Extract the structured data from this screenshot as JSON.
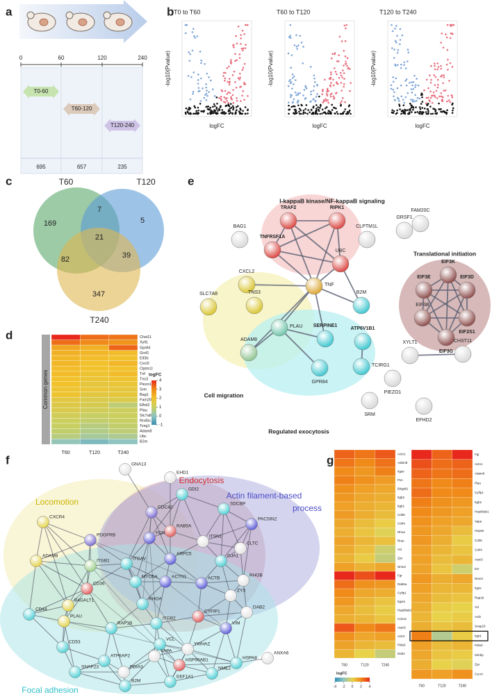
{
  "panel_labels": [
    "a",
    "b",
    "c",
    "d",
    "e",
    "f",
    "g"
  ],
  "a": {
    "ticks": [
      0,
      60,
      120,
      240
    ],
    "intervals": [
      {
        "label": "T0-60",
        "count": 695,
        "color": "#c6e3b0"
      },
      {
        "label": "T60-120",
        "count": 657,
        "color": "#dccabb"
      },
      {
        "label": "T120-240",
        "count": 235,
        "color": "#cfc3e6"
      }
    ]
  },
  "b": {
    "plots": [
      {
        "title": "T0 to T60",
        "x_label": "logFC",
        "y_label": "-log10(Pvalue)"
      },
      {
        "title": "T60 to T120",
        "x_label": "logFC",
        "y_label": "-log10(Pvalue)"
      },
      {
        "title": "T120 to T240",
        "x_label": "logFC",
        "y_label": "-log10(Pvalue)"
      }
    ],
    "colors": {
      "down": "#7fa6d6",
      "up": "#e8707f",
      "ns": "#111111"
    }
  },
  "c": {
    "sets": [
      {
        "label": "T60",
        "color": "#5aa86a"
      },
      {
        "label": "T120",
        "color": "#5b9bd5"
      },
      {
        "label": "T240",
        "color": "#e0b550"
      }
    ],
    "regions": [
      169,
      5,
      347,
      7,
      82,
      39,
      21
    ]
  },
  "d": {
    "side_label": "Common genes",
    "columns": [
      "T60",
      "T120",
      "T240"
    ],
    "genes": [
      "Chst11",
      "Xylt1",
      "Gpr84",
      "Grsf1",
      "Eif3b",
      "Cxcl2",
      "Clptm1l",
      "Tnf",
      "Tns3",
      "Piezo1",
      "Srm",
      "Bag1",
      "Fam20c",
      "Efhd2",
      "Plau",
      "Slc7a8",
      "Rn45s",
      "Tcirg1",
      "Adam8",
      "Ubc",
      "B2m"
    ],
    "values": [
      [
        4,
        3.3,
        3.2
      ],
      [
        3.3,
        3.0,
        2.8
      ],
      [
        2.5,
        2.3,
        3.4
      ],
      [
        2.3,
        2.2,
        2.1
      ],
      [
        2.2,
        2.1,
        2.0
      ],
      [
        2.2,
        2.0,
        2.2
      ],
      [
        2.1,
        2.0,
        2.0
      ],
      [
        2.1,
        1.9,
        2.1
      ],
      [
        2.0,
        1.8,
        1.9
      ],
      [
        2.0,
        1.7,
        1.8
      ],
      [
        1.9,
        1.8,
        1.7
      ],
      [
        1.9,
        1.6,
        1.7
      ],
      [
        1.6,
        1.4,
        1.4
      ],
      [
        1.5,
        1.3,
        0.8
      ],
      [
        1.4,
        1.2,
        1.1
      ],
      [
        1.2,
        1.0,
        1.1
      ],
      [
        1.1,
        0.9,
        1.0
      ],
      [
        1.0,
        0.7,
        0.9
      ],
      [
        0.9,
        0.6,
        0.8
      ],
      [
        0.7,
        0.4,
        0.5
      ],
      [
        0.1,
        -0.2,
        0.0
      ]
    ],
    "legend": {
      "title": "logFC",
      "ticks": [
        4,
        3,
        2,
        1,
        0,
        -1
      ],
      "colors": [
        "#e8281c",
        "#f08a18",
        "#f2c22c",
        "#c8cf62",
        "#8fc4c0",
        "#3a8fb0"
      ]
    }
  },
  "e": {
    "clusters": [
      {
        "label": "I-kappaB kinase/NF-kappaB signaling",
        "fill": "#f5c8c8"
      },
      {
        "label": "Translational initiation",
        "fill": "#c9a2a2"
      },
      {
        "label": "Cell migration",
        "fill": "#f5f2b8"
      },
      {
        "label": "Regulated exocytosis",
        "fill": "#b8eff2"
      }
    ],
    "nodes": [
      {
        "label": "BAG1",
        "color": "#d8d8d8"
      },
      {
        "label": "TRAF2",
        "color": "#d9433f"
      },
      {
        "label": "RIPK1",
        "color": "#d9433f"
      },
      {
        "label": "FAM20C",
        "color": "#d8d8d8"
      },
      {
        "label": "GRSF1",
        "color": "#d8d8d8"
      },
      {
        "label": "TNFRSF1A",
        "color": "#d9433f"
      },
      {
        "label": "CLPTM1L",
        "color": "#d8d8d8"
      },
      {
        "label": "UBC",
        "color": "#d9433f"
      },
      {
        "label": "EIF3K",
        "color": "#8b4a48"
      },
      {
        "label": "EIF3E",
        "color": "#8b4a48"
      },
      {
        "label": "EIF3D",
        "color": "#8b4a48"
      },
      {
        "label": "EIF3B",
        "color": "#8b4a48"
      },
      {
        "label": "EIF2S1",
        "color": "#8b4a48"
      },
      {
        "label": "EIF3G",
        "color": "#8b4a48"
      },
      {
        "label": "CXCL2",
        "color": "#d9c52e"
      },
      {
        "label": "SLC7A8",
        "color": "#d9c52e"
      },
      {
        "label": "TNS3",
        "color": "#d9c52e"
      },
      {
        "label": "TNF",
        "color": "#d9a52e"
      },
      {
        "label": "B2M",
        "color": "#3cc6cf"
      },
      {
        "label": "PLAU",
        "color": "#6cc4a8"
      },
      {
        "label": "SERPINE1",
        "color": "#3cc6cf"
      },
      {
        "label": "ATP6V1B1",
        "color": "#3cc6cf"
      },
      {
        "label": "ADAM8",
        "color": "#8fc490"
      },
      {
        "label": "GPR84",
        "color": "#3cc6cf"
      },
      {
        "label": "TCIRG1",
        "color": "#3cc6cf"
      },
      {
        "label": "XYLT1",
        "color": "#d8d8d8"
      },
      {
        "label": "CHST11",
        "color": "#d8d8d8"
      },
      {
        "label": "PIEZO1",
        "color": "#d8d8d8"
      },
      {
        "label": "SRM",
        "color": "#d8d8d8"
      },
      {
        "label": "EFHD2",
        "color": "#d8d8d8"
      }
    ]
  },
  "f": {
    "clusters": [
      {
        "label": [
          "Locomotion"
        ],
        "color": "#c9b400",
        "fill": "#f3ecb0"
      },
      {
        "label": [
          "Endocytosis"
        ],
        "color": "#d12a2a",
        "fill": "#dba8a8"
      },
      {
        "label": [
          "Actin filament-based",
          "process"
        ],
        "color": "#4a4ac8",
        "fill": "#aaa9de"
      },
      {
        "label": [
          "Focal adhesion"
        ],
        "color": "#2fbfc8",
        "fill": "#a8e3e6"
      }
    ],
    "nodes": [
      {
        "label": "GNA13",
        "color": "#e4e4e4"
      },
      {
        "label": "EHD1",
        "color": "#e4e4e4"
      },
      {
        "label": "GDI2",
        "color": "#4fd0d6"
      },
      {
        "label": "SDCBP",
        "color": "#4fd0d6"
      },
      {
        "label": "CDC42",
        "color": "#7a6ad0"
      },
      {
        "label": "RAB5A",
        "color": "#e05a5a"
      },
      {
        "label": "PACSIN2",
        "color": "#5a5ad8"
      },
      {
        "label": "CXCR4",
        "color": "#e3d24a"
      },
      {
        "label": "PDGFRB",
        "color": "#7a6ad0"
      },
      {
        "label": "FGR",
        "color": "#5a5ad8"
      },
      {
        "label": "ITSN1",
        "color": "#e4e4e4"
      },
      {
        "label": "CLTC",
        "color": "#e4e4e4"
      },
      {
        "label": "ADAM8",
        "color": "#e3d24a"
      },
      {
        "label": "ITGB1",
        "color": "#9ccf8a"
      },
      {
        "label": "ITGAV",
        "color": "#4fd0d6"
      },
      {
        "label": "ARPC5",
        "color": "#5a5ad8"
      },
      {
        "label": "GJA1",
        "color": "#4fd0d6"
      },
      {
        "label": "RHOB",
        "color": "#e4e4e4"
      },
      {
        "label": "CD36",
        "color": "#e05a5a"
      },
      {
        "label": "MYO5A",
        "color": "#4fd0d6"
      },
      {
        "label": "ACTN1",
        "color": "#5a5ad8"
      },
      {
        "label": "ACTB",
        "color": "#5a5ad8"
      },
      {
        "label": "ZYX",
        "color": "#e4e4e4"
      },
      {
        "label": "B4GALT1",
        "color": "#e3d24a"
      },
      {
        "label": "CD44",
        "color": "#4fd0d6"
      },
      {
        "label": "PLAU",
        "color": "#e3d24a"
      },
      {
        "label": "RHOA",
        "color": "#4fd0d6"
      },
      {
        "label": "RAP1B",
        "color": "#4fd0d6"
      },
      {
        "label": "ITGB2",
        "color": "#4fd0d6"
      },
      {
        "label": "CYFIP1",
        "color": "#e05a5a"
      },
      {
        "label": "VIM",
        "color": "#5a5ad8"
      },
      {
        "label": "DAB2",
        "color": "#e4e4e4"
      },
      {
        "label": "CD53",
        "color": "#4fd0d6"
      },
      {
        "label": "ATP6AP2",
        "color": "#4fd0d6"
      },
      {
        "label": "VCL",
        "color": "#4fd0d6"
      },
      {
        "label": "YWHAZ",
        "color": "#e4e4e4"
      },
      {
        "label": "HSPA8",
        "color": "#4fd0d6"
      },
      {
        "label": "ANXA6",
        "color": "#e4e4e4"
      },
      {
        "label": "SNAP23",
        "color": "#4fd0d6"
      },
      {
        "label": "VAPA",
        "color": "#e4e4e4"
      },
      {
        "label": "PDIA3",
        "color": "#e4e4e4"
      },
      {
        "label": "HSP90AB1",
        "color": "#e05a5a"
      },
      {
        "label": "NME2",
        "color": "#4fd0d6"
      },
      {
        "label": "EEF1A1",
        "color": "#4fd0d6"
      },
      {
        "label": "B2M",
        "color": "#4fd0d6"
      }
    ]
  },
  "g": {
    "heatmaps": [
      {
        "columns": [
          "T60",
          "T120",
          "T240"
        ],
        "genes": [
          "Actn1",
          "Adam8",
          "Itgav",
          "Pxn",
          "B4galt1",
          "Itgb2",
          "Itgb1",
          "Cd36",
          "Cd44",
          "Rhoa",
          "Rras",
          "Vcl",
          "Zyx",
          "Nme2",
          "Fgr",
          "Rab5a",
          "Cyfip1",
          "Itgam",
          "Hsp90ab1",
          "Cdc42",
          "Arpc5",
          "Actr2",
          "Pdia3",
          "Dab2"
        ],
        "values": [
          [
            2.8,
            2.4,
            3.0
          ],
          [
            2.4,
            2.0,
            2.5
          ],
          [
            2.0,
            1.6,
            2.2
          ],
          [
            2.2,
            1.8,
            1.5
          ],
          [
            1.8,
            1.4,
            1.2
          ],
          [
            1.6,
            1.2,
            1.0
          ],
          [
            1.4,
            1.0,
            0.8
          ],
          [
            1.5,
            1.0,
            0.6
          ],
          [
            1.2,
            0.6,
            0.2
          ],
          [
            1.0,
            0.4,
            -0.2
          ],
          [
            1.3,
            0.8,
            0.5
          ],
          [
            1.1,
            0.5,
            -0.6
          ],
          [
            0.9,
            0.2,
            -0.8
          ],
          [
            1.4,
            0.9,
            1.2
          ],
          [
            4.0,
            3.2,
            4.0
          ],
          [
            2.6,
            1.8,
            1.6
          ],
          [
            2.0,
            1.2,
            1.0
          ],
          [
            1.6,
            0.8,
            0.4
          ],
          [
            1.2,
            0.6,
            0.2
          ],
          [
            1.0,
            0.8,
            0.4
          ],
          [
            3.0,
            2.0,
            2.4
          ],
          [
            1.8,
            1.2,
            1.4
          ],
          [
            1.3,
            0.8,
            0.6
          ],
          [
            0.8,
            0.0,
            -0.8
          ]
        ]
      },
      {
        "columns": [
          "T60",
          "T120",
          "T240"
        ],
        "genes": [
          "Fgr",
          "Actn1",
          "Adam8",
          "Plau",
          "Cyfip1",
          "Itgb2",
          "Hsp90ab1",
          "Vapa",
          "Hspa8",
          "Cd36",
          "Cd44",
          "Arpc5",
          "Ezr",
          "Nme2",
          "Itgav",
          "Rap1b",
          "Vcl",
          "Actb",
          "Snap23",
          "Itgb1",
          "Pdia3",
          "Sdcbp",
          "Zyx",
          "Cxcr4"
        ],
        "values": [
          [
            4.0,
            2.8,
            4.0
          ],
          [
            3.2,
            2.6,
            2.8
          ],
          [
            2.8,
            2.4,
            2.6
          ],
          [
            2.4,
            2.0,
            2.2
          ],
          [
            2.6,
            2.0,
            2.0
          ],
          [
            2.2,
            1.8,
            1.6
          ],
          [
            2.0,
            1.6,
            1.4
          ],
          [
            1.8,
            1.4,
            1.2
          ],
          [
            1.6,
            1.2,
            0.6
          ],
          [
            1.6,
            1.0,
            0.2
          ],
          [
            1.4,
            0.8,
            0.4
          ],
          [
            1.4,
            0.6,
            0.8
          ],
          [
            1.3,
            0.4,
            -0.6
          ],
          [
            1.6,
            1.0,
            1.2
          ],
          [
            1.4,
            0.8,
            0.8
          ],
          [
            1.2,
            0.6,
            0.4
          ],
          [
            1.0,
            0.2,
            0.0
          ],
          [
            0.8,
            0.0,
            0.2
          ],
          [
            1.0,
            0.4,
            0.6
          ],
          [
            2.2,
            -1.2,
            0.2
          ],
          [
            1.4,
            0.6,
            0.8
          ],
          [
            1.2,
            0.4,
            0.2
          ],
          [
            1.0,
            0.0,
            -0.2
          ],
          [
            1.6,
            1.4,
            1.8
          ]
        ]
      }
    ],
    "highlight": {
      "heatmap": 1,
      "row": 19
    },
    "legend": {
      "title": "logFC",
      "ticks": [
        -4,
        -2,
        0,
        2,
        4
      ],
      "colors": [
        "#2f8fb8",
        "#8fc4c0",
        "#e8d24a",
        "#f08a18",
        "#e8281c"
      ]
    }
  }
}
